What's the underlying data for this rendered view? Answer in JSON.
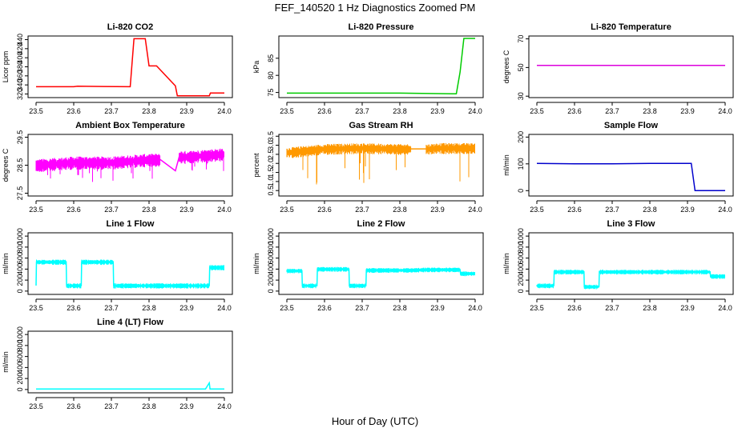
{
  "figure": {
    "title": "FEF_140520  1 Hz Diagnostics Zoomed PM",
    "xlabel": "Hour of Day (UTC)"
  },
  "chart_data": [
    {
      "type": "line",
      "title": "Li-820 CO2",
      "xlabel": "",
      "ylabel": "Licor ppm",
      "color": "#ff0000",
      "xlim": [
        23.5,
        24.0
      ],
      "ylim": [
        312,
        448
      ],
      "xticks": [
        "23.5",
        "23.6",
        "23.7",
        "23.8",
        "23.9",
        "24.0"
      ],
      "yticks": [
        "320",
        "340",
        "360",
        "380",
        "400",
        "420",
        "440"
      ],
      "grid": false,
      "series": [
        {
          "x": [
            23.5,
            23.52,
            23.6,
            23.61,
            23.75,
            23.76,
            23.79,
            23.8,
            23.82,
            23.87,
            23.875,
            23.96,
            23.963,
            24.0
          ],
          "y": [
            336,
            336,
            336,
            337,
            336,
            442,
            442,
            382,
            382,
            338,
            316,
            316,
            322,
            322
          ]
        }
      ]
    },
    {
      "type": "line",
      "title": "Li-820 Pressure",
      "xlabel": "",
      "ylabel": "kPa",
      "color": "#00cc00",
      "xlim": [
        23.5,
        24.0
      ],
      "ylim": [
        73.5,
        91.5
      ],
      "xticks": [
        "23.5",
        "23.6",
        "23.7",
        "23.8",
        "23.9",
        "24.0"
      ],
      "yticks": [
        "75",
        "80",
        "85"
      ],
      "grid": false,
      "series": [
        {
          "x": [
            23.5,
            23.7,
            23.8,
            23.94,
            23.95,
            23.96,
            23.97,
            24.0
          ],
          "y": [
            74.8,
            74.8,
            74.8,
            74.6,
            74.6,
            81.0,
            90.8,
            90.8
          ]
        }
      ]
    },
    {
      "type": "line",
      "title": "Li-820 Temperature",
      "xlabel": "",
      "ylabel": "degrees C",
      "color": "#dd00dd",
      "xlim": [
        23.5,
        24.0
      ],
      "ylim": [
        29,
        72
      ],
      "xticks": [
        "23.5",
        "23.6",
        "23.7",
        "23.8",
        "23.9",
        "24.0"
      ],
      "yticks": [
        "30",
        "50",
        "70"
      ],
      "grid": false,
      "series": [
        {
          "x": [
            23.5,
            24.0
          ],
          "y": [
            51.5,
            51.5
          ]
        }
      ]
    },
    {
      "type": "line",
      "title": "Ambient Box Temperature",
      "xlabel": "",
      "ylabel": "degrees C",
      "color": "#ff00ff",
      "xlim": [
        23.5,
        24.0
      ],
      "ylim": [
        27.4,
        29.6
      ],
      "xticks": [
        "23.5",
        "23.6",
        "23.7",
        "23.8",
        "23.9",
        "24.0"
      ],
      "yticks": [
        "27.5",
        "28.5",
        "29.5"
      ],
      "grid": false,
      "series": [
        {
          "x": [
            23.5,
            23.6,
            23.7,
            23.8,
            23.83,
            23.87,
            23.88,
            23.9,
            24.0
          ],
          "y": [
            28.5,
            28.6,
            28.6,
            28.7,
            28.7,
            28.3,
            28.8,
            28.8,
            28.9
          ]
        }
      ]
    },
    {
      "type": "line",
      "title": "Gas Stream RH",
      "xlabel": "",
      "ylabel": "percent",
      "color": "#ff9900",
      "xlim": [
        23.5,
        24.0
      ],
      "ylim": [
        0.2,
        3.6
      ],
      "xticks": [
        "23.5",
        "23.6",
        "23.7",
        "23.8",
        "23.9",
        "24.0"
      ],
      "yticks": [
        "0.5",
        "1.0",
        "1.5",
        "2.0",
        "2.5",
        "3.0",
        "3.5"
      ],
      "grid": false,
      "series": [
        {
          "x": [
            23.5,
            23.6,
            23.7,
            23.8,
            23.83,
            23.87,
            23.88,
            23.9,
            24.0
          ],
          "y": [
            2.6,
            2.8,
            2.85,
            2.8,
            2.8,
            2.8,
            2.8,
            2.85,
            2.85
          ]
        }
      ]
    },
    {
      "type": "line",
      "title": "Sample Flow",
      "xlabel": "",
      "ylabel": "ml/min",
      "color": "#0000cc",
      "xlim": [
        23.5,
        24.0
      ],
      "ylim": [
        -20,
        210
      ],
      "xticks": [
        "23.5",
        "23.6",
        "23.7",
        "23.8",
        "23.9",
        "24.0"
      ],
      "yticks": [
        "0",
        "100",
        "200"
      ],
      "grid": false,
      "series": [
        {
          "x": [
            23.5,
            23.6,
            23.7,
            23.8,
            23.9,
            23.91,
            23.92,
            24.0
          ],
          "y": [
            102,
            100,
            100,
            102,
            102,
            102,
            0,
            0
          ]
        }
      ]
    },
    {
      "type": "line",
      "title": "Line 1 Flow",
      "xlabel": "",
      "ylabel": "ml/min",
      "color": "#00ffff",
      "xlim": [
        23.5,
        24.0
      ],
      "ylim": [
        -60,
        1060
      ],
      "xticks": [
        "23.5",
        "23.6",
        "23.7",
        "23.8",
        "23.9",
        "24.0"
      ],
      "yticks": [
        "0",
        "200",
        "400",
        "600",
        "800",
        "1000"
      ],
      "grid": false,
      "series": [
        {
          "x": [
            23.5,
            23.501,
            23.58,
            23.581,
            23.62,
            23.621,
            23.705,
            23.706,
            23.96,
            23.961,
            24.0
          ],
          "y": [
            100,
            530,
            530,
            100,
            100,
            530,
            530,
            100,
            100,
            430,
            430
          ]
        }
      ]
    },
    {
      "type": "line",
      "title": "Line 2 Flow",
      "xlabel": "",
      "ylabel": "ml/min",
      "color": "#00ffff",
      "xlim": [
        23.5,
        24.0
      ],
      "ylim": [
        -60,
        1060
      ],
      "xticks": [
        "23.5",
        "23.6",
        "23.7",
        "23.8",
        "23.9",
        "24.0"
      ],
      "yticks": [
        "0",
        "200",
        "400",
        "600",
        "800",
        "1000"
      ],
      "grid": false,
      "series": [
        {
          "x": [
            23.5,
            23.54,
            23.541,
            23.58,
            23.581,
            23.665,
            23.666,
            23.71,
            23.711,
            23.83,
            23.87,
            23.96,
            23.961,
            24.0
          ],
          "y": [
            370,
            370,
            100,
            100,
            400,
            400,
            100,
            100,
            380,
            380,
            390,
            390,
            320,
            320
          ]
        }
      ]
    },
    {
      "type": "line",
      "title": "Line 3 Flow",
      "xlabel": "",
      "ylabel": "ml/min",
      "color": "#00ffff",
      "xlim": [
        23.5,
        24.0
      ],
      "ylim": [
        -60,
        1060
      ],
      "xticks": [
        "23.5",
        "23.6",
        "23.7",
        "23.8",
        "23.9",
        "24.0"
      ],
      "yticks": [
        "0",
        "200",
        "400",
        "600",
        "800",
        "1000"
      ],
      "grid": false,
      "series": [
        {
          "x": [
            23.5,
            23.545,
            23.546,
            23.625,
            23.626,
            23.665,
            23.666,
            23.83,
            23.87,
            23.96,
            23.961,
            24.0
          ],
          "y": [
            100,
            100,
            350,
            350,
            80,
            80,
            350,
            350,
            350,
            350,
            270,
            270
          ]
        }
      ]
    },
    {
      "type": "line",
      "title": "Line 4 (LT) Flow",
      "xlabel": "",
      "ylabel": "ml/min",
      "color": "#00ffff",
      "xlim": [
        23.5,
        24.0
      ],
      "ylim": [
        -60,
        1060
      ],
      "xticks": [
        "23.5",
        "23.6",
        "23.7",
        "23.8",
        "23.9",
        "24.0"
      ],
      "yticks": [
        "0",
        "200",
        "400",
        "600",
        "800",
        "1000"
      ],
      "grid": false,
      "series": [
        {
          "x": [
            23.5,
            23.95,
            23.96,
            23.962,
            24.0
          ],
          "y": [
            10,
            10,
            120,
            10,
            10
          ]
        }
      ]
    }
  ]
}
